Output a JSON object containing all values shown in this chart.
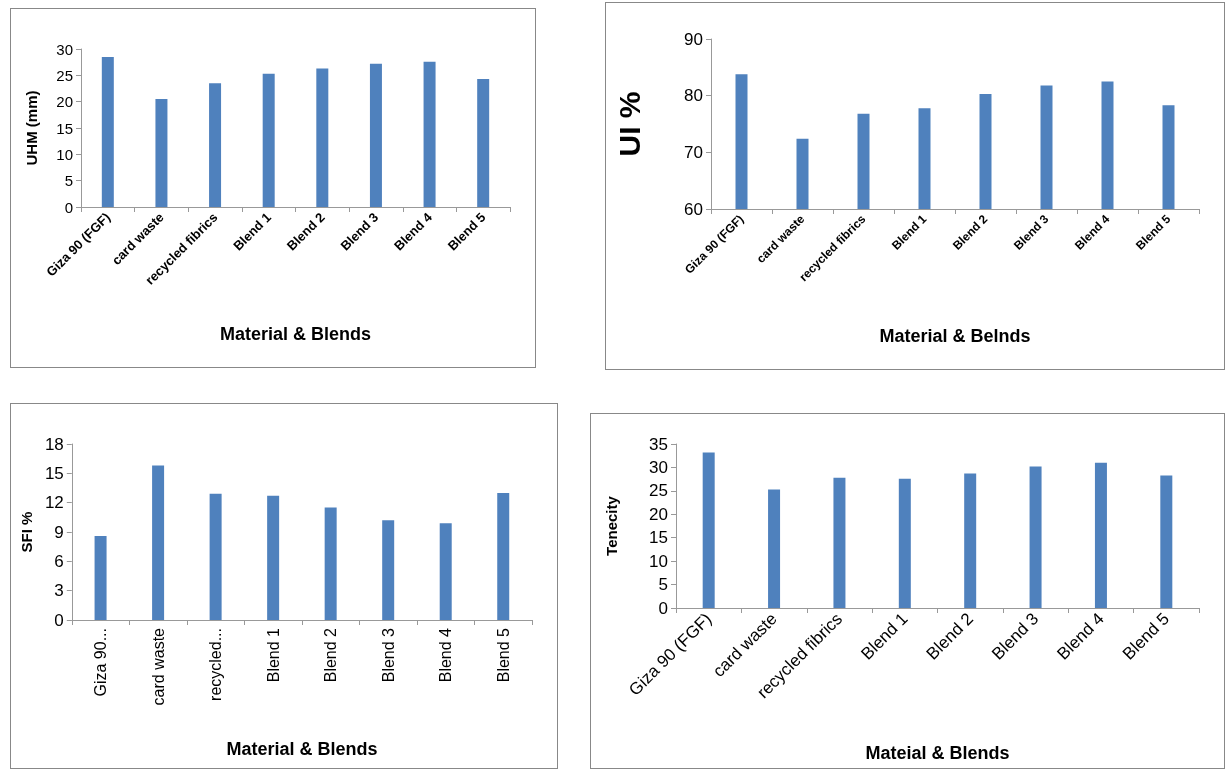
{
  "chart_data": [
    {
      "type": "bar",
      "categories": [
        "Giza 90 (FGF)",
        "card waste",
        "recycled fibrics",
        "Blend 1",
        "Blend 2",
        "Blend 3",
        "Blend 4",
        "Blend 5"
      ],
      "values": [
        28.5,
        20.5,
        23.5,
        25.3,
        26.3,
        27.2,
        27.6,
        24.3
      ],
      "color": "#4f81bd",
      "xlabel": "Material & Blends",
      "ylabel": "UHM (mm)",
      "ylim": [
        0,
        30
      ],
      "yticks": [
        0,
        5,
        10,
        15,
        20,
        25,
        30
      ],
      "grid": false
    },
    {
      "type": "bar",
      "categories": [
        "Giza 90 (FGF)",
        "card waste",
        "recycled fibrics",
        "Blend 1",
        "Blend 2",
        "Blend 3",
        "Blend 4",
        "Blend 5"
      ],
      "values": [
        83.8,
        72.4,
        76.8,
        77.8,
        80.3,
        81.8,
        82.5,
        78.3
      ],
      "color": "#4f81bd",
      "xlabel": "Material & Belnds",
      "ylabel": "UI %",
      "ylim": [
        60,
        90
      ],
      "yticks": [
        60,
        70,
        80,
        90
      ],
      "grid": false
    },
    {
      "type": "bar",
      "categories": [
        "Giza 90...",
        "card waste",
        "recycled...",
        "Blend 1",
        "Blend 2",
        "Blend 3",
        "Blend 4",
        "Blend 5"
      ],
      "values": [
        8.6,
        15.8,
        12.9,
        12.7,
        11.5,
        10.2,
        9.9,
        13.0
      ],
      "color": "#4f81bd",
      "xlabel": "Material & Blends",
      "ylabel": "SFI %",
      "ylim": [
        0,
        18
      ],
      "yticks": [
        0,
        3,
        6,
        9,
        12,
        15,
        18
      ],
      "grid": false
    },
    {
      "type": "bar",
      "categories": [
        "Giza 90 (FGF)",
        "card waste",
        "recycled fibrics",
        "Blend 1",
        "Blend 2",
        "Blend 3",
        "Blend 4",
        "Blend 5"
      ],
      "values": [
        33.2,
        25.3,
        27.8,
        27.6,
        28.7,
        30.2,
        31.0,
        28.3
      ],
      "color": "#4f81bd",
      "xlabel": "Mateial & Blends",
      "ylabel": "Tenecity",
      "ylim": [
        0,
        35
      ],
      "yticks": [
        0,
        5,
        10,
        15,
        20,
        25,
        30,
        35
      ],
      "grid": false
    }
  ]
}
